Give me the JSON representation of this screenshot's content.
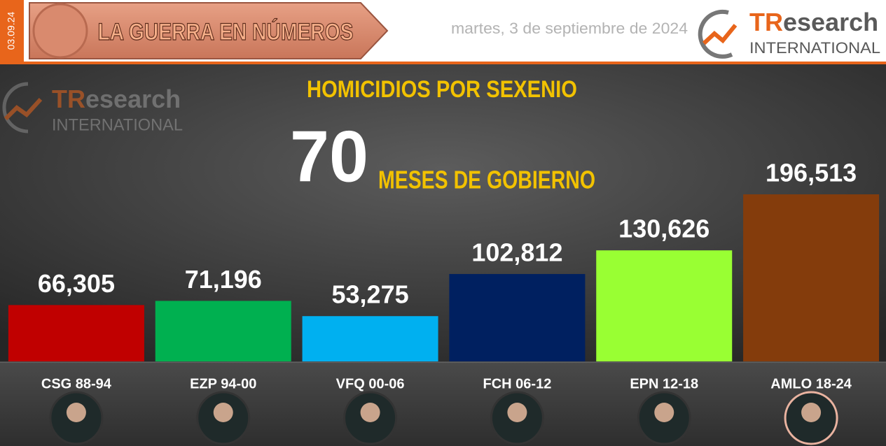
{
  "header": {
    "side_date": "03.09.24",
    "title": "LA GUERRA EN NÚMEROS",
    "date": "martes, 3 de septiembre de 2024",
    "logo": {
      "brand_a": "TR",
      "brand_b": "esearch",
      "sub": "INTERNATIONAL"
    }
  },
  "chart_data": {
    "type": "bar",
    "title": "HOMICIDIOS POR SEXENIO",
    "annotation": {
      "number": 70,
      "text": "MESES DE GOBIERNO"
    },
    "categories": [
      "CSG 88-94",
      "EZP 94-00",
      "VFQ 00-06",
      "FCH 06-12",
      "EPN 12-18",
      "AMLO 18-24"
    ],
    "values": [
      66305,
      71196,
      53275,
      102812,
      130626,
      196513
    ],
    "value_labels": [
      "66,305",
      "71,196",
      "53,275",
      "102,812",
      "130,626",
      "196,513"
    ],
    "colors": [
      "#c00000",
      "#00b050",
      "#00b0f0",
      "#002060",
      "#99ff33",
      "#843c0c"
    ]
  }
}
